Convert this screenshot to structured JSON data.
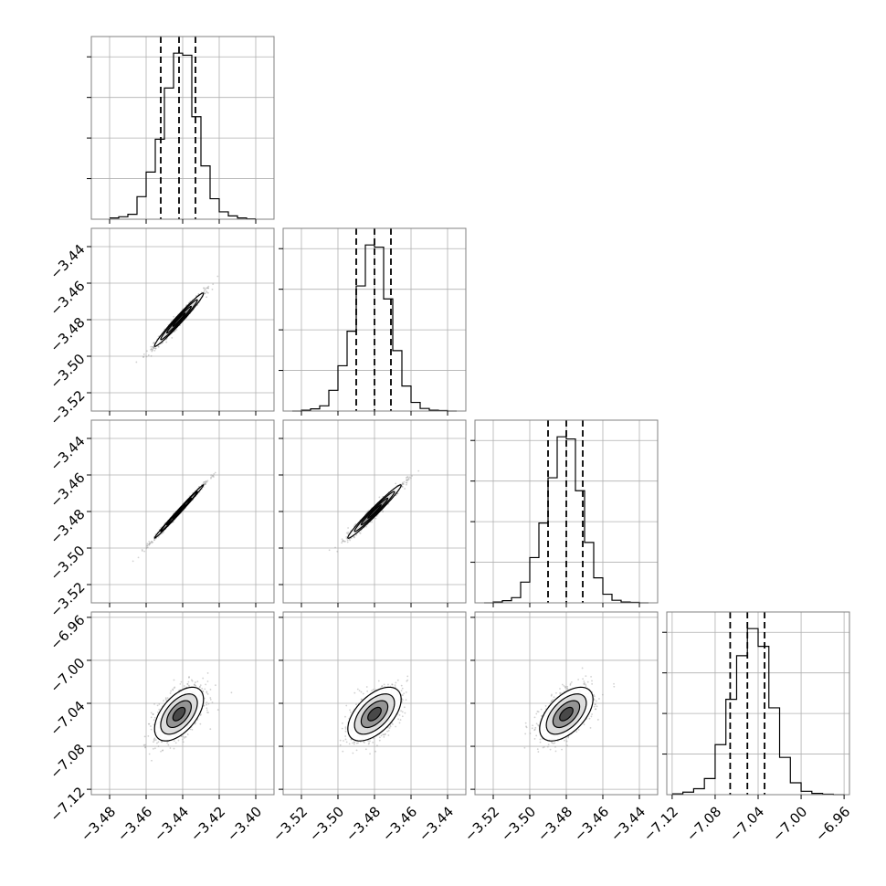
{
  "chart_data": {
    "type": "corner",
    "n_params": 4,
    "grid": true,
    "quantile_lines": "dashed",
    "colors": {
      "line": "#000000",
      "grid": "#b0b0b0",
      "points": "#9a9a9a",
      "frame": "#808080",
      "background": "#ffffff"
    },
    "params": [
      {
        "range": [
          -3.49,
          -3.39
        ],
        "ticks": [
          -3.48,
          -3.46,
          -3.44,
          -3.42,
          -3.4
        ],
        "tick_labels": [
          "−3.48",
          "−3.46",
          "−3.44",
          "−3.42",
          "−3.40"
        ],
        "quantiles": [
          -3.452,
          -3.442,
          -3.433
        ],
        "median_line": -3.442
      },
      {
        "range": [
          -3.53,
          -3.43
        ],
        "ticks": [
          -3.52,
          -3.5,
          -3.48,
          -3.46,
          -3.44
        ],
        "tick_labels": [
          "−3.52",
          "−3.50",
          "−3.48",
          "−3.46",
          "−3.44"
        ],
        "quantiles": [
          -3.49,
          -3.48,
          -3.471
        ],
        "median_line": -3.48
      },
      {
        "range": [
          -3.53,
          -3.43
        ],
        "ticks": [
          -3.52,
          -3.5,
          -3.48,
          -3.46,
          -3.44
        ],
        "tick_labels": [
          "−3.52",
          "−3.50",
          "−3.48",
          "−3.46",
          "−3.44"
        ],
        "quantiles": [
          -3.49,
          -3.48,
          -3.471
        ],
        "median_line": -3.48
      },
      {
        "range": [
          -7.125,
          -6.955
        ],
        "ticks": [
          -7.12,
          -7.08,
          -7.04,
          -7.0,
          -6.96
        ],
        "tick_labels": [
          "−7.12",
          "−7.08",
          "−7.04",
          "−7.00",
          "−6.96"
        ],
        "quantiles": [
          -7.066,
          -7.05,
          -7.034
        ],
        "median_line": -7.05
      }
    ],
    "histograms": [
      {
        "param": 0,
        "bin_edges": [
          -3.48,
          -3.475,
          -3.47,
          -3.465,
          -3.46,
          -3.455,
          -3.45,
          -3.445,
          -3.44,
          -3.435,
          -3.43,
          -3.425,
          -3.42,
          -3.415,
          -3.41,
          -3.405,
          -3.4
        ],
        "counts": [
          3,
          6,
          12,
          55,
          115,
          195,
          320,
          405,
          400,
          250,
          130,
          50,
          18,
          8,
          3,
          1
        ]
      },
      {
        "param": 1,
        "bin_edges": [
          -3.525,
          -3.52,
          -3.515,
          -3.51,
          -3.505,
          -3.5,
          -3.495,
          -3.49,
          -3.485,
          -3.48,
          -3.475,
          -3.47,
          -3.465,
          -3.46,
          -3.455,
          -3.45,
          -3.445,
          -3.44,
          -3.435
        ],
        "counts": [
          0,
          2,
          5,
          12,
          48,
          105,
          185,
          290,
          385,
          380,
          260,
          140,
          58,
          20,
          6,
          2,
          1,
          0
        ]
      },
      {
        "param": 2,
        "bin_edges": [
          -3.525,
          -3.52,
          -3.515,
          -3.51,
          -3.505,
          -3.5,
          -3.495,
          -3.49,
          -3.485,
          -3.48,
          -3.475,
          -3.47,
          -3.465,
          -3.46,
          -3.455,
          -3.45,
          -3.445,
          -3.44,
          -3.435
        ],
        "counts": [
          0,
          2,
          5,
          12,
          48,
          105,
          185,
          290,
          385,
          380,
          260,
          140,
          58,
          20,
          6,
          2,
          1,
          0
        ]
      },
      {
        "param": 3,
        "bin_edges": [
          -7.12,
          -7.11,
          -7.1,
          -7.09,
          -7.08,
          -7.07,
          -7.06,
          -7.05,
          -7.04,
          -7.03,
          -7.02,
          -7.01,
          -7.0,
          -6.99,
          -6.98,
          -6.97,
          -6.96
        ],
        "counts": [
          2,
          6,
          14,
          38,
          118,
          225,
          328,
          392,
          350,
          205,
          88,
          28,
          8,
          3,
          1,
          0
        ]
      }
    ],
    "pairs": [
      {
        "x_param": 0,
        "y_param": 1,
        "center": [
          -3.442,
          -3.48
        ],
        "std": [
          0.0067,
          0.0073
        ],
        "correlation": 0.98
      },
      {
        "x_param": 0,
        "y_param": 2,
        "center": [
          -3.442,
          -3.48
        ],
        "std": [
          0.0067,
          0.0073
        ],
        "correlation": 0.995
      },
      {
        "x_param": 1,
        "y_param": 2,
        "center": [
          -3.48,
          -3.48
        ],
        "std": [
          0.0073,
          0.0073
        ],
        "correlation": 0.98
      },
      {
        "x_param": 0,
        "y_param": 3,
        "center": [
          -3.442,
          -7.05
        ],
        "std": [
          0.0067,
          0.0125
        ],
        "correlation": 0.55
      },
      {
        "x_param": 1,
        "y_param": 3,
        "center": [
          -3.48,
          -7.05
        ],
        "std": [
          0.0073,
          0.0125
        ],
        "correlation": 0.55
      },
      {
        "x_param": 2,
        "y_param": 3,
        "center": [
          -3.48,
          -7.05
        ],
        "std": [
          0.0073,
          0.0125
        ],
        "correlation": 0.55
      }
    ],
    "contour_levels_sigma": [
      0.5,
      1.0,
      1.5,
      2.0
    ]
  }
}
